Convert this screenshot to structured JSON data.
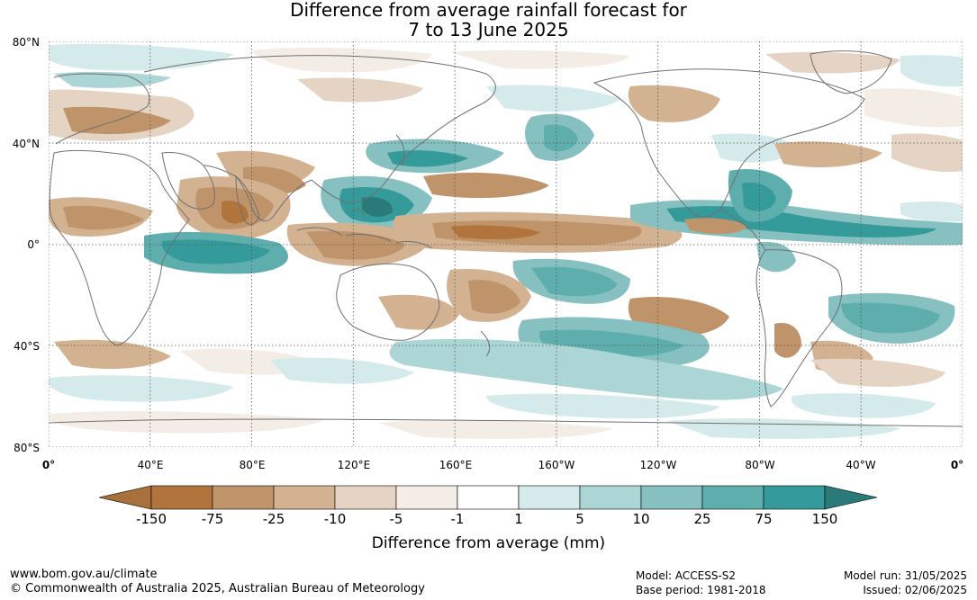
{
  "title": {
    "line1": "Difference from average rainfall forecast for",
    "line2": "7 to 13 June 2025"
  },
  "map": {
    "lat_labels": [
      "80°N",
      "40°N",
      "0°",
      "40°S",
      "80°S"
    ],
    "lon_labels": [
      "0°",
      "40°E",
      "80°E",
      "120°E",
      "160°E",
      "160°W",
      "120°W",
      "80°W",
      "40°W",
      "0°"
    ],
    "grid_style": "dotted"
  },
  "colorbar": {
    "ticks": [
      "-150",
      "-75",
      "-25",
      "-10",
      "-5",
      "-1",
      "1",
      "5",
      "10",
      "25",
      "75",
      "150"
    ],
    "colors": [
      "#a8703a",
      "#b1743d",
      "#c0946a",
      "#d3b292",
      "#e5d3c3",
      "#f3ede6",
      "#ffffff",
      "#d5eaea",
      "#acd5d5",
      "#86c0c0",
      "#5eaeae",
      "#359a9a",
      "#2b7a7a"
    ],
    "label": "Difference from average (mm)"
  },
  "footer": {
    "website": "www.bom.gov.au/climate",
    "copyright": "© Commonwealth of Australia 2025, Australian Bureau of Meteorology",
    "model": "Model: ACCESS-S2",
    "base_period": "Base period: 1981-2018",
    "model_run": "Model run: 31/05/2025",
    "issued": "Issued: 02/06/2025"
  }
}
